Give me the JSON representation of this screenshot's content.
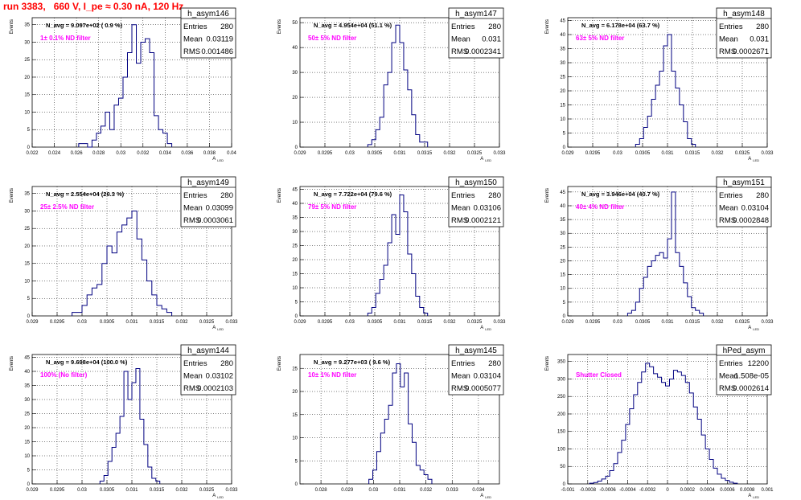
{
  "header": {
    "run_title": "run 3383,   660 V, I_pe ≈ 0.30 nA, 120 Hz"
  },
  "colors": {
    "histogram_line": "#000080",
    "label_text": "#ff00ff",
    "header_text": "#ff0000",
    "grid": "#000000"
  },
  "chart_data": [
    {
      "type": "histogram",
      "stats": {
        "name": "h_asym146",
        "entries": "280",
        "mean": "0.03119",
        "rms": "0.001486"
      },
      "navg": "N_avg = 9.097e+02 ( 0.9 %)",
      "filter_label": "1± 0.1% ND filter",
      "ylabel": "Events",
      "xlabel": "A",
      "xlabel_sub": "LED",
      "xlim": [
        0.022,
        0.04
      ],
      "ylim": [
        0,
        37
      ],
      "xticks": [
        "0.022",
        "0.024",
        "0.026",
        "0.028",
        "0.03",
        "0.032",
        "0.034",
        "0.036",
        "0.038",
        "0.04"
      ],
      "xtick_values": [
        0.022,
        0.024,
        0.026,
        0.028,
        0.03,
        0.032,
        0.034,
        0.036,
        0.038,
        0.04
      ],
      "yticks": [
        "0",
        "5",
        "10",
        "15",
        "20",
        "25",
        "30",
        "35"
      ],
      "ytick_values": [
        0,
        5,
        10,
        15,
        20,
        25,
        30,
        35
      ],
      "bins": [
        [
          0.0264,
          1
        ],
        [
          0.0268,
          1
        ],
        [
          0.0272,
          0
        ],
        [
          0.0276,
          2
        ],
        [
          0.028,
          4
        ],
        [
          0.0284,
          6
        ],
        [
          0.0288,
          10
        ],
        [
          0.0292,
          5
        ],
        [
          0.0296,
          12
        ],
        [
          0.03,
          14
        ],
        [
          0.0304,
          20
        ],
        [
          0.0308,
          27
        ],
        [
          0.0312,
          35
        ],
        [
          0.0316,
          24
        ],
        [
          0.032,
          30
        ],
        [
          0.0324,
          31
        ],
        [
          0.0328,
          27
        ],
        [
          0.0332,
          9
        ],
        [
          0.0336,
          5
        ],
        [
          0.034,
          4
        ],
        [
          0.0344,
          1
        ]
      ]
    },
    {
      "type": "histogram",
      "stats": {
        "name": "h_asym147",
        "entries": "280",
        "mean": "0.031",
        "rms": "0.0002341"
      },
      "navg": "N_avg = 4.954e+04 (51.1 %)",
      "filter_label": "50± 5% ND filter",
      "ylabel": "Events",
      "xlabel": "A",
      "xlabel_sub": "LED",
      "xlim": [
        0.029,
        0.033
      ],
      "ylim": [
        0,
        52
      ],
      "xticks": [
        "0.029",
        "0.0295",
        "0.03",
        "0.0305",
        "0.031",
        "0.0315",
        "0.032",
        "0.0325",
        "0.033"
      ],
      "xtick_values": [
        0.029,
        0.0295,
        0.03,
        0.0305,
        0.031,
        0.0315,
        0.032,
        0.0325,
        0.033
      ],
      "yticks": [
        "0",
        "10",
        "20",
        "30",
        "40",
        "50"
      ],
      "ytick_values": [
        0,
        10,
        20,
        30,
        40,
        50
      ],
      "bins": [
        [
          0.0304,
          1
        ],
        [
          0.03048,
          3
        ],
        [
          0.03056,
          7
        ],
        [
          0.03064,
          12
        ],
        [
          0.03072,
          25
        ],
        [
          0.0308,
          30
        ],
        [
          0.03088,
          42
        ],
        [
          0.03096,
          49
        ],
        [
          0.03104,
          42
        ],
        [
          0.03112,
          31
        ],
        [
          0.0312,
          23
        ],
        [
          0.03128,
          13
        ],
        [
          0.03136,
          5
        ],
        [
          0.03144,
          2
        ],
        [
          0.03152,
          2
        ]
      ]
    },
    {
      "type": "histogram",
      "stats": {
        "name": "h_asym148",
        "entries": "280",
        "mean": "0.031",
        "rms": "0.0002671"
      },
      "navg": "N_avg = 6.178e+04 (63.7 %)",
      "filter_label": "63± 5% ND filter",
      "ylabel": "Events",
      "xlabel": "A",
      "xlabel_sub": "LED",
      "xlim": [
        0.029,
        0.033
      ],
      "ylim": [
        0,
        46
      ],
      "xticks": [
        "0.029",
        "0.0295",
        "0.03",
        "0.0305",
        "0.031",
        "0.0315",
        "0.032",
        "0.0325",
        "0.033"
      ],
      "xtick_values": [
        0.029,
        0.0295,
        0.03,
        0.0305,
        0.031,
        0.0315,
        0.032,
        0.0325,
        0.033
      ],
      "yticks": [
        "0",
        "5",
        "10",
        "15",
        "20",
        "25",
        "30",
        "35",
        "40",
        "45"
      ],
      "ytick_values": [
        0,
        5,
        10,
        15,
        20,
        25,
        30,
        35,
        40,
        45
      ],
      "bins": [
        [
          0.0304,
          1
        ],
        [
          0.03048,
          3
        ],
        [
          0.03056,
          7
        ],
        [
          0.03064,
          11
        ],
        [
          0.03072,
          17
        ],
        [
          0.0308,
          22
        ],
        [
          0.03088,
          27
        ],
        [
          0.03096,
          36
        ],
        [
          0.03104,
          40
        ],
        [
          0.03112,
          27
        ],
        [
          0.0312,
          21
        ],
        [
          0.03128,
          15
        ],
        [
          0.03136,
          9
        ],
        [
          0.03144,
          3
        ],
        [
          0.03152,
          1
        ]
      ]
    },
    {
      "type": "histogram",
      "stats": {
        "name": "h_asym149",
        "entries": "280",
        "mean": "0.03099",
        "rms": "0.0003061"
      },
      "navg": "N_avg = 2.554e+04 (26.3 %)",
      "filter_label": "25± 2.5% ND filter",
      "ylabel": "Events",
      "xlabel": "A",
      "xlabel_sub": "LED",
      "xlim": [
        0.029,
        0.033
      ],
      "ylim": [
        0,
        37
      ],
      "xticks": [
        "0.029",
        "0.0295",
        "0.03",
        "0.0305",
        "0.031",
        "0.0315",
        "0.032",
        "0.0325",
        "0.033"
      ],
      "xtick_values": [
        0.029,
        0.0295,
        0.03,
        0.0305,
        0.031,
        0.0315,
        0.032,
        0.0325,
        0.033
      ],
      "yticks": [
        "0",
        "5",
        "10",
        "15",
        "20",
        "25",
        "30",
        "35"
      ],
      "ytick_values": [
        0,
        5,
        10,
        15,
        20,
        25,
        30,
        35
      ],
      "bins": [
        [
          0.02985,
          1
        ],
        [
          0.02995,
          1
        ],
        [
          0.03005,
          3
        ],
        [
          0.03015,
          6
        ],
        [
          0.03025,
          8
        ],
        [
          0.03035,
          9
        ],
        [
          0.03045,
          15
        ],
        [
          0.03055,
          20
        ],
        [
          0.03065,
          18
        ],
        [
          0.03075,
          24
        ],
        [
          0.03085,
          26
        ],
        [
          0.03095,
          28
        ],
        [
          0.03105,
          30
        ],
        [
          0.03115,
          22
        ],
        [
          0.03125,
          16
        ],
        [
          0.03135,
          10
        ],
        [
          0.03145,
          6
        ],
        [
          0.03155,
          3
        ],
        [
          0.03165,
          2
        ],
        [
          0.03175,
          1
        ]
      ]
    },
    {
      "type": "histogram",
      "stats": {
        "name": "h_asym150",
        "entries": "280",
        "mean": "0.03106",
        "rms": "0.0002121"
      },
      "navg": "N_avg = 7.722e+04 (79.6 %)",
      "filter_label": "79± 5% ND filter",
      "ylabel": "Events",
      "xlabel": "A",
      "xlabel_sub": "LED",
      "xlim": [
        0.029,
        0.033
      ],
      "ylim": [
        0,
        46
      ],
      "xticks": [
        "0.029",
        "0.0295",
        "0.03",
        "0.0305",
        "0.031",
        "0.0315",
        "0.032",
        "0.0325",
        "0.033"
      ],
      "xtick_values": [
        0.029,
        0.0295,
        0.03,
        0.0305,
        0.031,
        0.0315,
        0.032,
        0.0325,
        0.033
      ],
      "yticks": [
        "0",
        "5",
        "10",
        "15",
        "20",
        "25",
        "30",
        "35",
        "40",
        "45"
      ],
      "ytick_values": [
        0,
        5,
        10,
        15,
        20,
        25,
        30,
        35,
        40,
        45
      ],
      "bins": [
        [
          0.0304,
          1
        ],
        [
          0.03048,
          3
        ],
        [
          0.03056,
          8
        ],
        [
          0.03064,
          13
        ],
        [
          0.03072,
          18
        ],
        [
          0.0308,
          26
        ],
        [
          0.03088,
          36
        ],
        [
          0.03096,
          29
        ],
        [
          0.03104,
          43
        ],
        [
          0.03112,
          37
        ],
        [
          0.0312,
          22
        ],
        [
          0.03128,
          15
        ],
        [
          0.03136,
          7
        ],
        [
          0.03144,
          3
        ],
        [
          0.03152,
          1
        ]
      ]
    },
    {
      "type": "histogram",
      "stats": {
        "name": "h_asym151",
        "entries": "280",
        "mean": "0.03104",
        "rms": "0.0002848"
      },
      "navg": "N_avg = 3.946e+04 (40.7 %)",
      "filter_label": "40± 4% ND filter",
      "ylabel": "Events",
      "xlabel": "A",
      "xlabel_sub": "LED",
      "xlim": [
        0.029,
        0.033
      ],
      "ylim": [
        0,
        47
      ],
      "xticks": [
        "0.029",
        "0.0295",
        "0.03",
        "0.0305",
        "0.031",
        "0.0315",
        "0.032",
        "0.0325",
        "0.033"
      ],
      "xtick_values": [
        0.029,
        0.0295,
        0.03,
        0.0305,
        0.031,
        0.0315,
        0.032,
        0.0325,
        0.033
      ],
      "yticks": [
        "0",
        "5",
        "10",
        "15",
        "20",
        "25",
        "30",
        "35",
        "40",
        "45"
      ],
      "ytick_values": [
        0,
        5,
        10,
        15,
        20,
        25,
        30,
        35,
        40,
        45
      ],
      "bins": [
        [
          0.03024,
          1
        ],
        [
          0.03032,
          2
        ],
        [
          0.0304,
          5
        ],
        [
          0.03048,
          10
        ],
        [
          0.03056,
          14
        ],
        [
          0.03064,
          18
        ],
        [
          0.03072,
          20
        ],
        [
          0.0308,
          22
        ],
        [
          0.03088,
          23
        ],
        [
          0.03096,
          21
        ],
        [
          0.03104,
          28
        ],
        [
          0.03112,
          45
        ],
        [
          0.0312,
          23
        ],
        [
          0.03128,
          18
        ],
        [
          0.03136,
          12
        ],
        [
          0.03144,
          7
        ],
        [
          0.03152,
          3
        ],
        [
          0.0316,
          2
        ],
        [
          0.03168,
          1
        ]
      ]
    },
    {
      "type": "histogram",
      "stats": {
        "name": "h_asym144",
        "entries": "280",
        "mean": "0.03102",
        "rms": "0.0002103"
      },
      "navg": "N_avg = 9.698e+04 (100.0 %)",
      "filter_label": "100% (No filter)",
      "ylabel": "Events",
      "xlabel": "A",
      "xlabel_sub": "LED",
      "xlim": [
        0.029,
        0.033
      ],
      "ylim": [
        0,
        46
      ],
      "xticks": [
        "0.029",
        "0.0295",
        "0.03",
        "0.0305",
        "0.031",
        "0.0315",
        "0.032",
        "0.0325",
        "0.033"
      ],
      "xtick_values": [
        0.029,
        0.0295,
        0.03,
        0.0305,
        0.031,
        0.0315,
        0.032,
        0.0325,
        0.033
      ],
      "yticks": [
        "0",
        "5",
        "10",
        "15",
        "20",
        "25",
        "30",
        "35",
        "40",
        "45"
      ],
      "ytick_values": [
        0,
        5,
        10,
        15,
        20,
        25,
        30,
        35,
        40,
        45
      ],
      "bins": [
        [
          0.0304,
          1
        ],
        [
          0.03048,
          3
        ],
        [
          0.03056,
          8
        ],
        [
          0.03064,
          13
        ],
        [
          0.03072,
          18
        ],
        [
          0.0308,
          24
        ],
        [
          0.03088,
          40
        ],
        [
          0.03096,
          30
        ],
        [
          0.03104,
          36
        ],
        [
          0.03112,
          41
        ],
        [
          0.0312,
          23
        ],
        [
          0.03128,
          14
        ],
        [
          0.03136,
          6
        ],
        [
          0.03144,
          2
        ],
        [
          0.03152,
          1
        ]
      ]
    },
    {
      "type": "histogram",
      "stats": {
        "name": "h_asym145",
        "entries": "280",
        "mean": "0.03104",
        "rms": "0.0005077"
      },
      "navg": "N_avg = 9.277e+03 ( 9.6 %)",
      "filter_label": "10± 1% ND filter",
      "ylabel": "Events",
      "xlabel": "A",
      "xlabel_sub": "LED",
      "xlim": [
        0.0272,
        0.0348
      ],
      "ylim": [
        0,
        28
      ],
      "xticks": [
        "0.028",
        "0.029",
        "0.03",
        "0.031",
        "0.032",
        "0.033",
        "0.034"
      ],
      "xtick_values": [
        0.028,
        0.029,
        0.03,
        0.031,
        0.032,
        0.033,
        0.034
      ],
      "yticks": [
        "0",
        "5",
        "10",
        "15",
        "20",
        "25"
      ],
      "ytick_values": [
        0,
        5,
        10,
        15,
        20,
        25
      ],
      "bins": [
        [
          0.0299,
          1
        ],
        [
          0.03005,
          3
        ],
        [
          0.0302,
          7
        ],
        [
          0.03035,
          11
        ],
        [
          0.0305,
          14
        ],
        [
          0.03065,
          17
        ],
        [
          0.0308,
          24
        ],
        [
          0.03095,
          26
        ],
        [
          0.0311,
          21
        ],
        [
          0.03125,
          24
        ],
        [
          0.0314,
          13
        ],
        [
          0.03155,
          9
        ],
        [
          0.0317,
          4
        ],
        [
          0.03185,
          3
        ],
        [
          0.032,
          2
        ],
        [
          0.03215,
          1
        ]
      ]
    },
    {
      "type": "histogram",
      "stats": {
        "name": "hPed_asym",
        "entries": "12200",
        "mean": "-1.508e-05",
        "rms": "0.0002614"
      },
      "navg": "",
      "filter_label": "Shutter Closed",
      "ylabel": "Events",
      "xlabel": "A",
      "xlabel_sub": "LED",
      "xlim": [
        -0.001,
        0.001
      ],
      "ylim": [
        0,
        370
      ],
      "xticks": [
        "-0.001",
        "-0.0008",
        "-0.0006",
        "-0.0004",
        "-0.0002",
        "0",
        "0.0002",
        "0.0004",
        "0.0006",
        "0.0008",
        "0.001"
      ],
      "xtick_values": [
        -0.001,
        -0.0008,
        -0.0006,
        -0.0004,
        -0.0002,
        0,
        0.0002,
        0.0004,
        0.0006,
        0.0008,
        0.001
      ],
      "yticks": [
        "0",
        "50",
        "100",
        "150",
        "200",
        "250",
        "300",
        "350"
      ],
      "ytick_values": [
        0,
        50,
        100,
        150,
        200,
        250,
        300,
        350
      ],
      "bins": [
        [
          -0.00076,
          2
        ],
        [
          -0.00072,
          4
        ],
        [
          -0.00068,
          8
        ],
        [
          -0.00064,
          14
        ],
        [
          -0.0006,
          22
        ],
        [
          -0.00056,
          38
        ],
        [
          -0.00052,
          58
        ],
        [
          -0.00048,
          90
        ],
        [
          -0.00044,
          125
        ],
        [
          -0.0004,
          170
        ],
        [
          -0.00036,
          215
        ],
        [
          -0.00032,
          255
        ],
        [
          -0.00028,
          290
        ],
        [
          -0.00024,
          320
        ],
        [
          -0.0002,
          345
        ],
        [
          -0.00016,
          335
        ],
        [
          -0.00012,
          315
        ],
        [
          -8e-05,
          305
        ],
        [
          -4e-05,
          290
        ],
        [
          0.0,
          280
        ],
        [
          4e-05,
          300
        ],
        [
          8e-05,
          325
        ],
        [
          0.00012,
          320
        ],
        [
          0.00016,
          310
        ],
        [
          0.0002,
          290
        ],
        [
          0.00024,
          260
        ],
        [
          0.00028,
          220
        ],
        [
          0.00032,
          185
        ],
        [
          0.00036,
          140
        ],
        [
          0.0004,
          100
        ],
        [
          0.00044,
          70
        ],
        [
          0.00048,
          45
        ],
        [
          0.00052,
          28
        ],
        [
          0.00056,
          16
        ],
        [
          0.0006,
          10
        ],
        [
          0.00064,
          5
        ],
        [
          0.00068,
          2
        ]
      ]
    }
  ]
}
